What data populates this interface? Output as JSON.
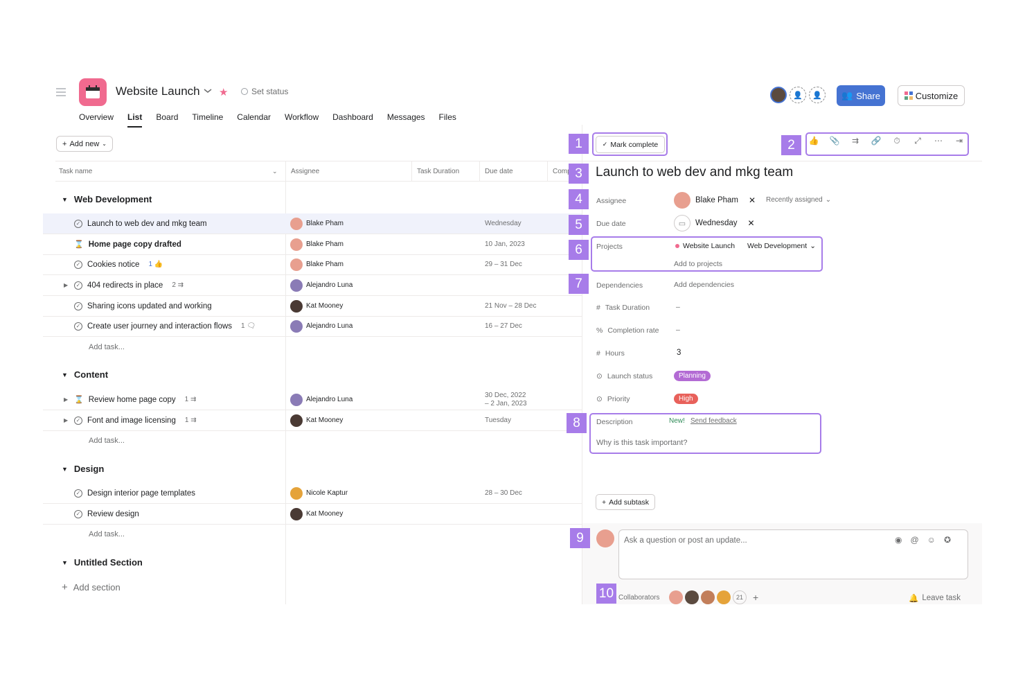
{
  "header": {
    "project_title": "Website Launch",
    "set_status": "Set status",
    "share_label": "Share",
    "customize_label": "Customize",
    "tabs": [
      "Overview",
      "List",
      "Board",
      "Timeline",
      "Calendar",
      "Workflow",
      "Dashboard",
      "Messages",
      "Files"
    ],
    "active_tab": "List",
    "colors": {
      "brand": "#f06a8f",
      "accent": "#4573d2",
      "highlight": "#a77ce9"
    }
  },
  "list": {
    "add_new": "Add new",
    "columns": {
      "task": "Task name",
      "assignee": "Assignee",
      "duration": "Task Duration",
      "due": "Due date",
      "comp": "Comp"
    },
    "sections": [
      {
        "name": "Web Development",
        "tasks": [
          {
            "name": "Launch to web dev and mkg team",
            "assignee": "Blake Pham",
            "due": "Wednesday",
            "extra": ""
          },
          {
            "name": "Home page copy drafted",
            "assignee": "Blake Pham",
            "due": "10 Jan, 2023",
            "extra": ""
          },
          {
            "name": "Cookies notice",
            "assignee": "Blake Pham",
            "due": "29 – 31 Dec",
            "extra": "1"
          },
          {
            "name": "404 redirects in place",
            "assignee": "Alejandro Luna",
            "due": "",
            "extra": "2"
          },
          {
            "name": "Sharing icons updated and working",
            "assignee": "Kat Mooney",
            "due": "21 Nov – 28 Dec",
            "extra": ""
          },
          {
            "name": "Create user journey and interaction flows",
            "assignee": "Alejandro Luna",
            "due": "16 – 27 Dec",
            "extra": "1"
          }
        ]
      },
      {
        "name": "Content",
        "tasks": [
          {
            "name": "Review home page copy",
            "assignee": "Alejandro Luna",
            "due": "30 Dec, 2022",
            "due2": "– 2 Jan, 2023",
            "extra": "1"
          },
          {
            "name": "Font and image licensing",
            "assignee": "Kat Mooney",
            "due": "Tuesday",
            "extra": "1"
          }
        ]
      },
      {
        "name": "Design",
        "tasks": [
          {
            "name": "Design interior page templates",
            "assignee": "Nicole Kaptur",
            "due": "28 – 30 Dec",
            "extra": ""
          },
          {
            "name": "Review design",
            "assignee": "Kat Mooney",
            "due": "",
            "extra": ""
          }
        ]
      },
      {
        "name": "Untitled Section",
        "tasks": []
      }
    ],
    "add_task": "Add task...",
    "add_section": "Add section"
  },
  "panel": {
    "mark_complete": "Mark complete",
    "title": "Launch to web dev and mkg team",
    "assignee_label": "Assignee",
    "assignee_value": "Blake Pham",
    "recently_assigned": "Recently assigned",
    "due_label": "Due date",
    "due_value": "Wednesday",
    "projects_label": "Projects",
    "project_name": "Website Launch",
    "project_section": "Web Development",
    "add_to_projects": "Add to projects",
    "dependencies_label": "Dependencies",
    "add_dependencies": "Add dependencies",
    "task_duration_label": "Task Duration",
    "task_duration_value": "–",
    "completion_label": "Completion rate",
    "completion_value": "–",
    "hours_label": "Hours",
    "hours_value": "3",
    "launch_status_label": "Launch status",
    "launch_status_value": "Planning",
    "priority_label": "Priority",
    "priority_value": "High",
    "description_label": "Description",
    "new_badge": "New!",
    "send_feedback": "Send feedback",
    "description_placeholder": "Why is this task important?",
    "add_subtask": "Add subtask",
    "comment_placeholder": "Ask a question or post an update...",
    "collaborators_label": "Collaborators",
    "collaborators_count": "21",
    "leave_task": "Leave task",
    "callouts": [
      "1",
      "2",
      "3",
      "4",
      "5",
      "6",
      "7",
      "8",
      "9",
      "10"
    ]
  }
}
